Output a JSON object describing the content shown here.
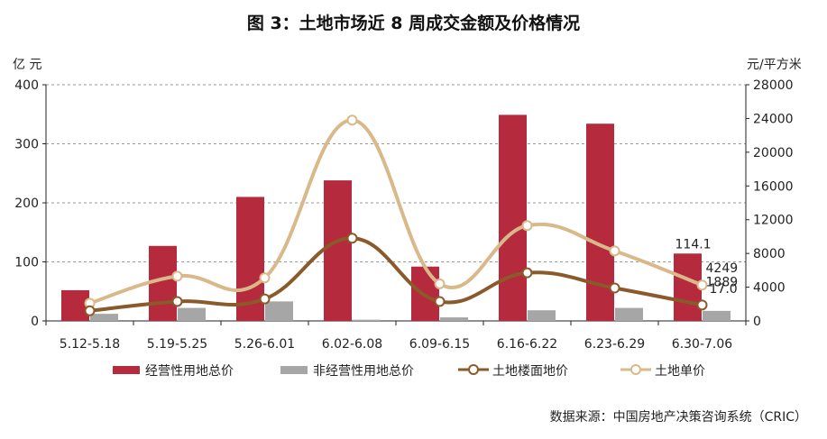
{
  "chart_data": {
    "type": "bar",
    "title": "图 3：土地市场近 8 周成交金额及价格情况",
    "categories": [
      "5.12-5.18",
      "5.19-5.25",
      "5.26-6.01",
      "6.02-6.08",
      "6.09-6.15",
      "6.16-6.22",
      "6.23-6.29",
      "6.30-7.06"
    ],
    "left_axis": {
      "unit": "亿 元",
      "ticks": [
        "0",
        "100",
        "200",
        "300",
        "400"
      ],
      "ylim": [
        0,
        400
      ]
    },
    "right_axis": {
      "unit": "元/平方米",
      "ticks": [
        "0",
        "4000",
        "8000",
        "12000",
        "16000",
        "20000",
        "24000",
        "28000"
      ],
      "ylim": [
        0,
        28000
      ]
    },
    "grid": "horizontal dashed",
    "legend_position": "bottom",
    "series": [
      {
        "name": "经营性用地总价",
        "kind": "bar",
        "axis": "left",
        "color": "#B52A3C",
        "values": [
          52,
          127,
          210,
          238,
          92,
          349,
          334,
          114.1
        ]
      },
      {
        "name": "非经营性用地总价",
        "kind": "bar",
        "axis": "left",
        "color": "#A6A6A6",
        "values": [
          12,
          22,
          33,
          2,
          6,
          18,
          22,
          17.0
        ]
      },
      {
        "name": "土地楼面地价",
        "kind": "line",
        "axis": "right",
        "color": "#8B5A2B",
        "values": [
          1200,
          2300,
          2600,
          9800,
          2300,
          5700,
          3900,
          1889
        ]
      },
      {
        "name": "土地单价",
        "kind": "line",
        "axis": "right",
        "color": "#D9B98A",
        "values": [
          2100,
          5300,
          5100,
          23800,
          4400,
          11300,
          8300,
          4249
        ]
      }
    ],
    "annotations": [
      "114.1",
      "4249",
      "1889",
      "17.0"
    ]
  },
  "source": "数据来源：中国房地产决策咨询系统（CRIC）"
}
